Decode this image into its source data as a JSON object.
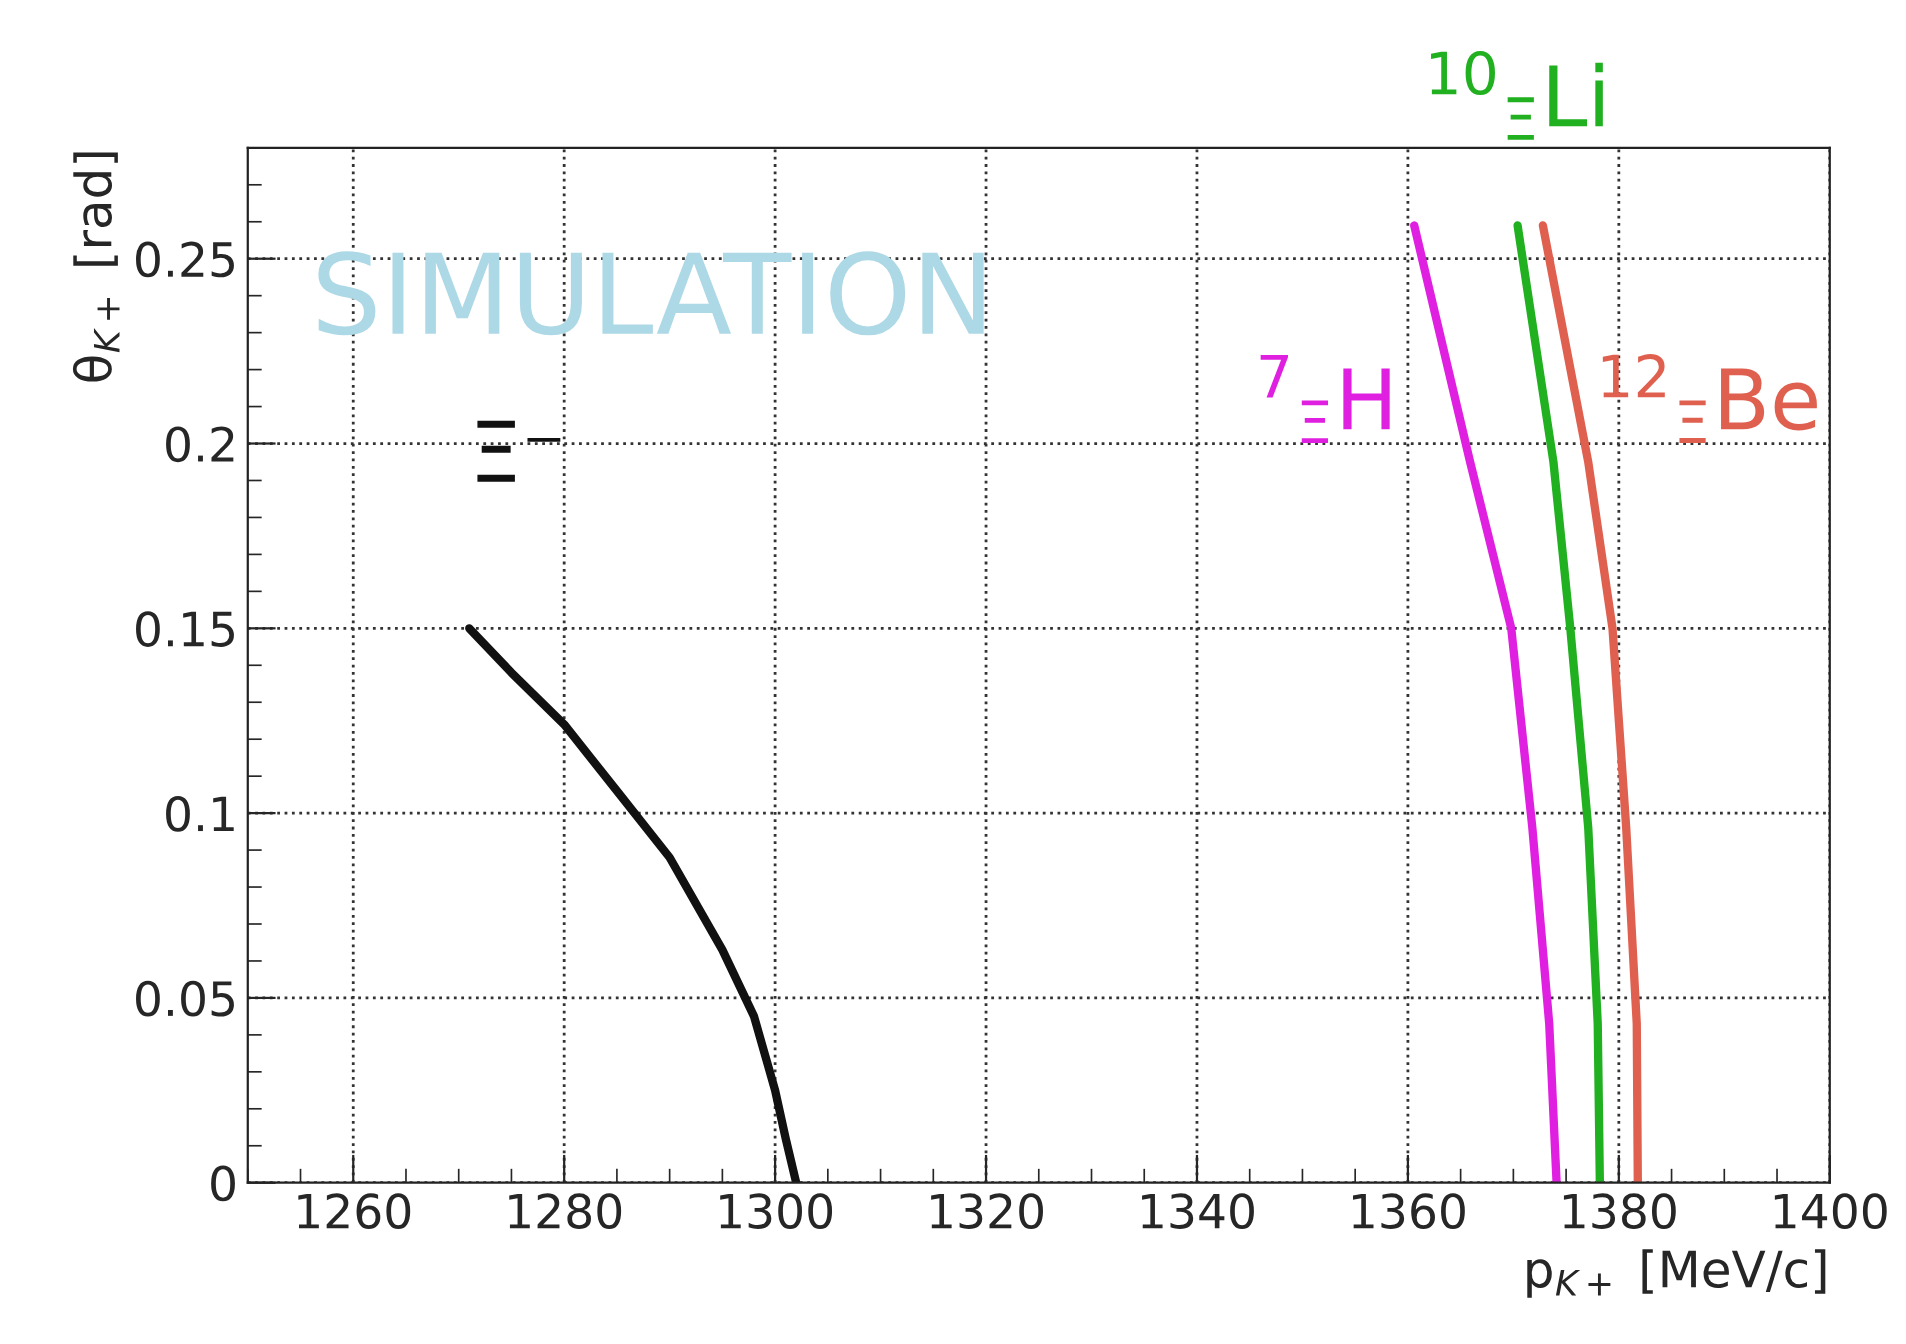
{
  "chart_data": {
    "type": "line",
    "xlabel": "p$_{K+}$ [MeV/c]",
    "ylabel": "θ$_{K+}$ [rad]",
    "annotations": [
      "SIMULATION"
    ],
    "xlim": [
      1250,
      1400
    ],
    "xticks": [
      1260,
      1280,
      1300,
      1320,
      1340,
      1360,
      1380,
      1400
    ],
    "ylim": [
      0,
      0.28
    ],
    "yticks": [
      0,
      0.05,
      0.1,
      0.15,
      0.2,
      0.25
    ],
    "grid": true,
    "legend": false,
    "series": [
      {
        "name": "Ξ⁻",
        "color": "#111111",
        "x": [
          1271,
          1275,
          1280,
          1285,
          1290,
          1295,
          1298,
          1299,
          1300,
          1301,
          1302
        ],
        "values": [
          0.15,
          0.138,
          0.124,
          0.106,
          0.088,
          0.063,
          0.045,
          0.035,
          0.025,
          0.012,
          0
        ]
      },
      {
        "name": "$^{7}$$_{Ξ}$H",
        "color": "#e020e0",
        "x": [
          1360.6,
          1365.9,
          1369.8,
          1371.8,
          1373.4,
          1374.1
        ],
        "values": [
          0.259,
          0.195,
          0.15,
          0.096,
          0.043,
          0
        ]
      },
      {
        "name": "$^{10}$$_{Ξ}$Li",
        "color": "#20b020",
        "x": [
          1370.4,
          1373.8,
          1375.4,
          1377.1,
          1378.0,
          1378.2
        ],
        "values": [
          0.259,
          0.195,
          0.15,
          0.096,
          0.043,
          0
        ]
      },
      {
        "name": "$^{12}$$_{Ξ}$Be",
        "color": "#e06050",
        "x": [
          1372.8,
          1377.1,
          1379.4,
          1380.7,
          1381.7,
          1381.8
        ],
        "values": [
          0.259,
          0.195,
          0.15,
          0.096,
          0.043,
          0
        ]
      }
    ]
  }
}
